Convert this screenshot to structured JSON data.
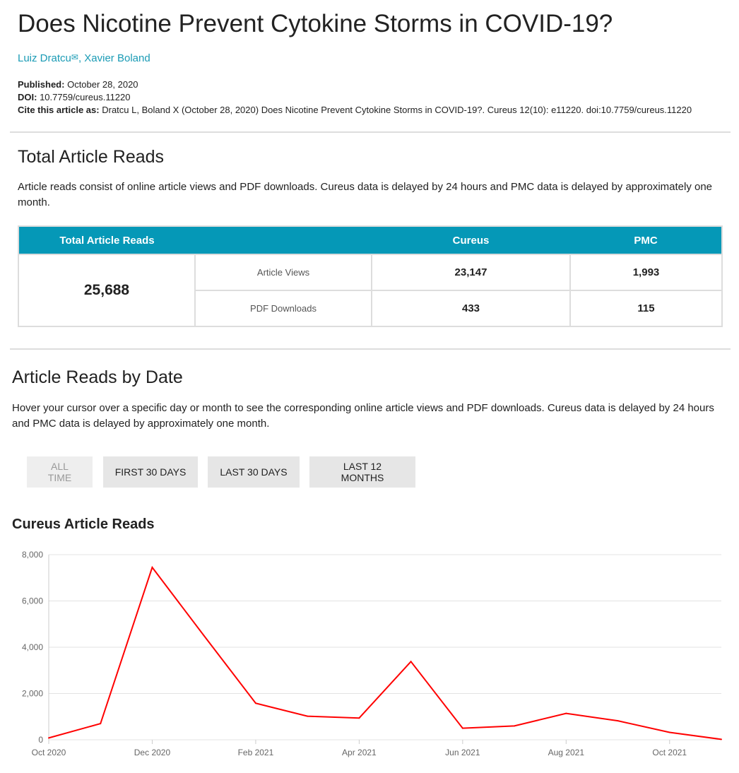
{
  "title": "Does Nicotine Prevent Cytokine Storms in COVID-19?",
  "authors": [
    "Luiz Dratcu",
    "Xavier Boland"
  ],
  "author_separator": ", ",
  "mail_icon": "✉",
  "published_label": "Published:",
  "published": "October 28, 2020",
  "doi_label": "DOI:",
  "doi": "10.7759/cureus.11220",
  "cite_label": "Cite this article as:",
  "cite": "Dratcu L, Boland X (October 28, 2020) Does Nicotine Prevent Cytokine Storms in COVID-19?. Cureus 12(10): e11220. doi:10.7759/cureus.11220",
  "total": {
    "heading": "Total Article Reads",
    "description": "Article reads consist of online article views and PDF downloads. Cureus data is delayed by 24 hours and PMC data is delayed by approximately one month.",
    "headers": [
      "Total Article Reads",
      "",
      "Cureus",
      "PMC"
    ],
    "total_value": "25,688",
    "rows": [
      {
        "label": "Article Views",
        "cureus": "23,147",
        "pmc": "1,993"
      },
      {
        "label": "PDF Downloads",
        "cureus": "433",
        "pmc": "115"
      }
    ]
  },
  "by_date": {
    "heading": "Article Reads by Date",
    "description": "Hover your cursor over a specific day or month to see the corresponding online article views and PDF downloads. Cureus data is delayed by 24 hours and PMC data is delayed by approximately one month.",
    "buttons": [
      "ALL TIME",
      "FIRST 30 DAYS",
      "LAST 30 DAYS",
      "LAST 12 MONTHS"
    ]
  },
  "chart_data": {
    "type": "line",
    "title": "Cureus Article Reads",
    "xlabel": "",
    "ylabel": "",
    "ylim": [
      0,
      8000
    ],
    "grid": true,
    "x": [
      "Oct 2020",
      "Nov 2020",
      "Dec 2020",
      "Jan 2021",
      "Feb 2021",
      "Mar 2021",
      "Apr 2021",
      "May 2021",
      "Jun 2021",
      "Jul 2021",
      "Aug 2021",
      "Sep 2021",
      "Oct 2021",
      "Nov 2021"
    ],
    "values": [
      80,
      700,
      7450,
      4500,
      1580,
      1020,
      940,
      3380,
      500,
      600,
      1140,
      820,
      320,
      20
    ],
    "y_ticks": [
      0,
      2000,
      4000,
      6000,
      8000
    ],
    "y_tick_labels": [
      "0",
      "2,000",
      "4,000",
      "6,000",
      "8,000"
    ],
    "x_tick_labels": [
      "Oct 2020",
      "Dec 2020",
      "Feb 2021",
      "Apr 2021",
      "Jun 2021",
      "Aug 2021",
      "Oct 2021"
    ],
    "line_color": "#ff0000"
  }
}
